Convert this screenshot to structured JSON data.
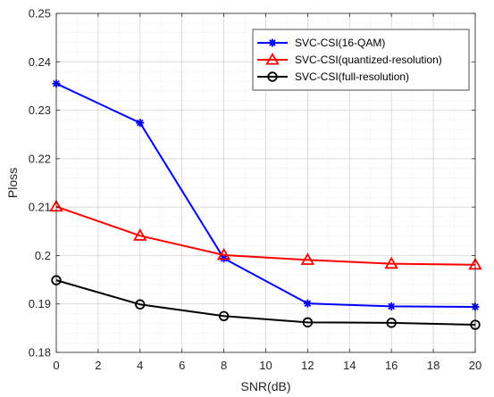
{
  "chart_data": {
    "type": "line",
    "xlabel": "SNR(dB)",
    "ylabel": "Ploss",
    "xlim": [
      0,
      20
    ],
    "ylim": [
      0.18,
      0.25
    ],
    "xticks": [
      0,
      2,
      4,
      6,
      8,
      10,
      12,
      14,
      16,
      18,
      20
    ],
    "yticks": [
      0.18,
      0.19,
      0.2,
      0.21,
      0.22,
      0.23,
      0.24,
      0.25
    ],
    "ytick_labels": [
      "0.18",
      "0.19",
      "0.2",
      "0.21",
      "0.22",
      "0.23",
      "0.24",
      "0.25"
    ],
    "grid": true,
    "minor_grid": true,
    "legend_position": "top-right",
    "x": [
      0,
      4,
      8,
      12,
      16,
      20
    ],
    "series": [
      {
        "name": "SVC-CSI(16-QAM)",
        "color": "#0000ff",
        "marker": "asterisk",
        "values": [
          0.2355,
          0.2274,
          0.1994,
          0.1901,
          0.1895,
          0.1894
        ]
      },
      {
        "name": "SVC-CSI(quantized-resolution)",
        "color": "#ff0000",
        "marker": "triangle",
        "values": [
          0.2101,
          0.2041,
          0.2001,
          0.1991,
          0.1983,
          0.1981
        ]
      },
      {
        "name": "SVC-CSI(full-resolution)",
        "color": "#000000",
        "marker": "circle",
        "values": [
          0.1949,
          0.1899,
          0.1875,
          0.1862,
          0.1861,
          0.1857
        ]
      }
    ]
  }
}
